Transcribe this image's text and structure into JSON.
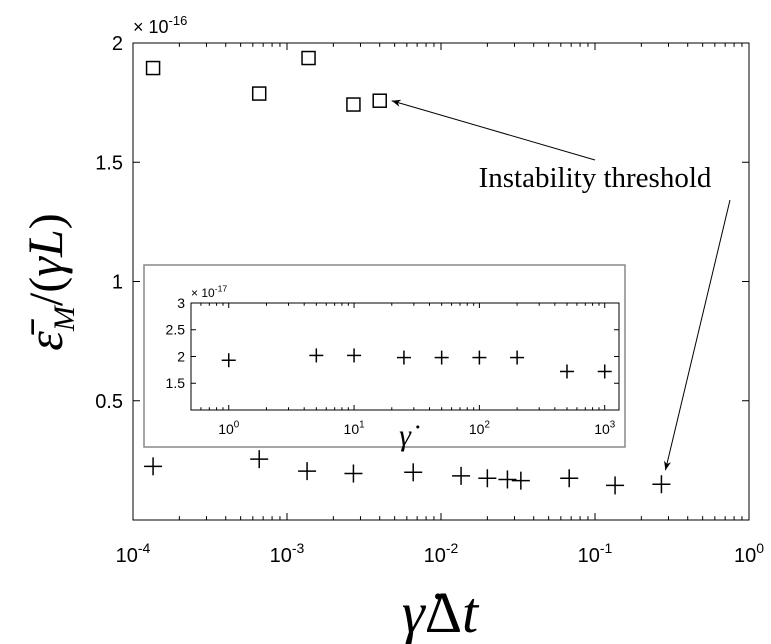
{
  "chart_data": [
    {
      "type": "scatter",
      "x_scale": "log",
      "xlim": [
        0.0001,
        1
      ],
      "ylim": [
        0.0,
        2.0
      ],
      "multiplier": "× 10^-16",
      "multiplier_base": "× 10",
      "multiplier_exp": "-16",
      "y_ticks": [
        {
          "value": 0.5,
          "label": "0.5"
        },
        {
          "value": 1.0,
          "label": "1"
        },
        {
          "value": 1.5,
          "label": "1.5"
        },
        {
          "value": 2.0,
          "label": "2"
        }
      ],
      "x_ticks": [
        {
          "value": 0.0001,
          "exp": "-4"
        },
        {
          "value": 0.001,
          "exp": "-3"
        },
        {
          "value": 0.01,
          "exp": "-2"
        },
        {
          "value": 0.1,
          "exp": "-1"
        },
        {
          "value": 1,
          "exp": "0"
        }
      ],
      "series": [
        {
          "marker": "square",
          "points": [
            {
              "x": 0.000135,
              "y": 1.895
            },
            {
              "x": 0.00066,
              "y": 1.788
            },
            {
              "x": 0.00138,
              "y": 1.937
            },
            {
              "x": 0.0027,
              "y": 1.742
            },
            {
              "x": 0.004,
              "y": 1.758
            }
          ]
        },
        {
          "marker": "plus",
          "points": [
            {
              "x": 0.000135,
              "y": 0.225
            },
            {
              "x": 0.00066,
              "y": 0.255
            },
            {
              "x": 0.00135,
              "y": 0.205
            },
            {
              "x": 0.0027,
              "y": 0.195
            },
            {
              "x": 0.0066,
              "y": 0.2
            },
            {
              "x": 0.0135,
              "y": 0.185
            },
            {
              "x": 0.02,
              "y": 0.175
            },
            {
              "x": 0.027,
              "y": 0.17
            },
            {
              "x": 0.033,
              "y": 0.165
            },
            {
              "x": 0.068,
              "y": 0.175
            },
            {
              "x": 0.135,
              "y": 0.145
            },
            {
              "x": 0.27,
              "y": 0.15
            }
          ]
        }
      ],
      "annotation": {
        "text": "Instability threshold",
        "targets": [
          {
            "x": 0.004,
            "y": 1.758
          },
          {
            "x": 0.27,
            "y": 0.15
          }
        ]
      }
    },
    {
      "type": "scatter",
      "inset": true,
      "x_scale": "log",
      "xlim": [
        0.5,
        1300
      ],
      "ylim": [
        1.0,
        3.0
      ],
      "multiplier": "× 10^-17",
      "multiplier_base": "× 10",
      "multiplier_exp": "-17",
      "y_ticks": [
        {
          "value": 1.5,
          "label": "1.5"
        },
        {
          "value": 2.0,
          "label": "2"
        },
        {
          "value": 2.5,
          "label": "2.5"
        },
        {
          "value": 3.0,
          "label": "3"
        }
      ],
      "x_ticks": [
        {
          "value": 1,
          "exp": "0"
        },
        {
          "value": 10,
          "exp": "1"
        },
        {
          "value": 100,
          "exp": "2"
        },
        {
          "value": 1000,
          "exp": "3"
        }
      ],
      "series": [
        {
          "marker": "plus",
          "points": [
            {
              "x": 1,
              "y": 1.93
            },
            {
              "x": 5,
              "y": 2.02
            },
            {
              "x": 10,
              "y": 2.02
            },
            {
              "x": 25,
              "y": 1.98
            },
            {
              "x": 50,
              "y": 1.98
            },
            {
              "x": 100,
              "y": 1.98
            },
            {
              "x": 200,
              "y": 1.98
            },
            {
              "x": 500,
              "y": 1.72
            },
            {
              "x": 1000,
              "y": 1.72
            }
          ]
        }
      ]
    }
  ]
}
